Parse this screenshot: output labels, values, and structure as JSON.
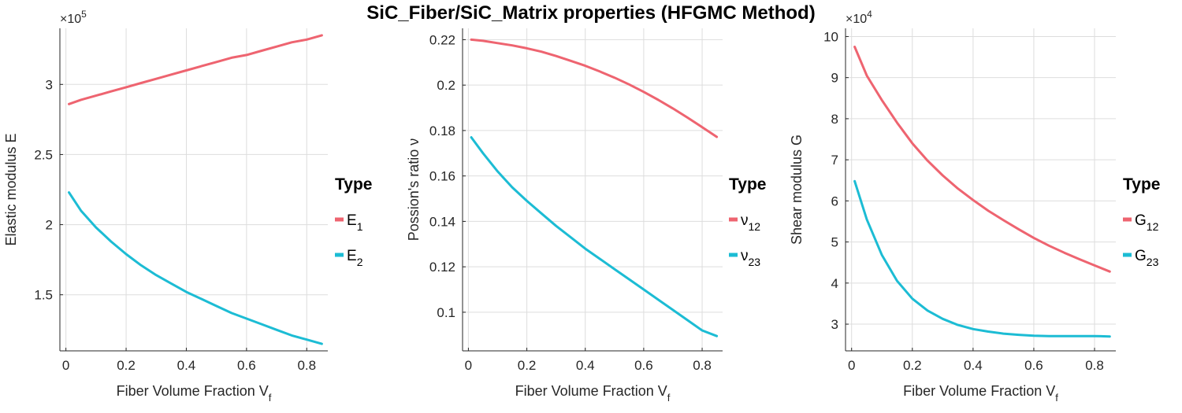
{
  "figure": {
    "title": "SiC_Fiber/SiC_Matrix properties (HFGMC Method)",
    "background": "#ffffff",
    "grid_color": "#dddddd",
    "axis_color": "#262626",
    "text_color": "#262626"
  },
  "chart_data": [
    {
      "type": "line",
      "xlabel": "Fiber Volume Fraction V",
      "xlabel_sub": "f",
      "ylabel": "Elastic modulus E",
      "multiplier": "×10",
      "multiplier_exp": "5",
      "xlim": [
        -0.02,
        0.87
      ],
      "ylim": [
        1.1,
        3.4
      ],
      "xticks": [
        0,
        0.2,
        0.4,
        0.6,
        0.8
      ],
      "xtick_labels": [
        "0",
        "0.2",
        "0.4",
        "0.6",
        "0.8"
      ],
      "yticks": [
        1.5,
        2,
        2.5,
        3
      ],
      "ytick_labels": [
        "1.5",
        "2",
        "2.5",
        "3"
      ],
      "grid": true,
      "legend": {
        "title": "Type",
        "placement": "right"
      },
      "x": [
        0.01,
        0.05,
        0.1,
        0.15,
        0.2,
        0.25,
        0.3,
        0.35,
        0.4,
        0.45,
        0.5,
        0.55,
        0.6,
        0.65,
        0.7,
        0.75,
        0.8,
        0.85
      ],
      "series": [
        {
          "name": "E",
          "name_sub": "1",
          "color": "#ee6470",
          "values": [
            2.86,
            2.89,
            2.92,
            2.95,
            2.98,
            3.01,
            3.04,
            3.07,
            3.1,
            3.13,
            3.16,
            3.19,
            3.21,
            3.24,
            3.27,
            3.3,
            3.32,
            3.35
          ]
        },
        {
          "name": "E",
          "name_sub": "2",
          "color": "#1cbcd4",
          "values": [
            2.23,
            2.1,
            1.98,
            1.88,
            1.79,
            1.71,
            1.64,
            1.58,
            1.52,
            1.47,
            1.42,
            1.37,
            1.33,
            1.29,
            1.25,
            1.21,
            1.18,
            1.15
          ]
        }
      ]
    },
    {
      "type": "line",
      "xlabel": "Fiber Volume Fraction V",
      "xlabel_sub": "f",
      "ylabel": "Possion's ratio ν",
      "multiplier": "",
      "multiplier_exp": "",
      "xlim": [
        -0.02,
        0.87
      ],
      "ylim": [
        0.083,
        0.225
      ],
      "xticks": [
        0,
        0.2,
        0.4,
        0.6,
        0.8
      ],
      "xtick_labels": [
        "0",
        "0.2",
        "0.4",
        "0.6",
        "0.8"
      ],
      "yticks": [
        0.1,
        0.12,
        0.14,
        0.16,
        0.18,
        0.2,
        0.22
      ],
      "ytick_labels": [
        "0.1",
        "0.12",
        "0.14",
        "0.16",
        "0.18",
        "0.2",
        "0.22"
      ],
      "grid": true,
      "legend": {
        "title": "Type",
        "placement": "right"
      },
      "x": [
        0.01,
        0.05,
        0.1,
        0.15,
        0.2,
        0.25,
        0.3,
        0.35,
        0.4,
        0.45,
        0.5,
        0.55,
        0.6,
        0.65,
        0.7,
        0.75,
        0.8,
        0.85
      ],
      "series": [
        {
          "name": "ν",
          "name_sub": "12",
          "color": "#ee6470",
          "values": [
            0.22,
            0.2195,
            0.2185,
            0.2175,
            0.2162,
            0.2147,
            0.2128,
            0.2107,
            0.2085,
            0.206,
            0.2033,
            0.2003,
            0.197,
            0.1935,
            0.1897,
            0.1857,
            0.1815,
            0.1772
          ]
        },
        {
          "name": "ν",
          "name_sub": "23",
          "color": "#1cbcd4",
          "values": [
            0.177,
            0.17,
            0.162,
            0.155,
            0.149,
            0.1435,
            0.138,
            0.133,
            0.128,
            0.1235,
            0.119,
            0.1145,
            0.11,
            0.1055,
            0.101,
            0.0965,
            0.092,
            0.0895
          ]
        }
      ]
    },
    {
      "type": "line",
      "xlabel": "Fiber Volume Fraction V",
      "xlabel_sub": "f",
      "ylabel": "Shear modulus G",
      "multiplier": "×10",
      "multiplier_exp": "4",
      "xlim": [
        -0.02,
        0.87
      ],
      "ylim": [
        2.35,
        10.2
      ],
      "xticks": [
        0,
        0.2,
        0.4,
        0.6,
        0.8
      ],
      "xtick_labels": [
        "0",
        "0.2",
        "0.4",
        "0.6",
        "0.8"
      ],
      "yticks": [
        3,
        4,
        5,
        6,
        7,
        8,
        9,
        10
      ],
      "ytick_labels": [
        "3",
        "4",
        "5",
        "6",
        "7",
        "8",
        "9",
        "10"
      ],
      "grid": true,
      "legend": {
        "title": "Type",
        "placement": "right"
      },
      "x": [
        0.01,
        0.05,
        0.1,
        0.15,
        0.2,
        0.25,
        0.3,
        0.35,
        0.4,
        0.45,
        0.5,
        0.55,
        0.6,
        0.65,
        0.7,
        0.75,
        0.8,
        0.85
      ],
      "series": [
        {
          "name": "G",
          "name_sub": "12",
          "color": "#ee6470",
          "values": [
            9.75,
            9.05,
            8.45,
            7.9,
            7.4,
            6.98,
            6.62,
            6.3,
            6.02,
            5.76,
            5.53,
            5.31,
            5.1,
            4.91,
            4.74,
            4.58,
            4.43,
            4.28
          ]
        },
        {
          "name": "G",
          "name_sub": "23",
          "color": "#1cbcd4",
          "values": [
            6.48,
            5.55,
            4.68,
            4.05,
            3.62,
            3.33,
            3.13,
            2.98,
            2.88,
            2.82,
            2.77,
            2.74,
            2.72,
            2.71,
            2.71,
            2.71,
            2.71,
            2.7
          ]
        }
      ]
    }
  ]
}
